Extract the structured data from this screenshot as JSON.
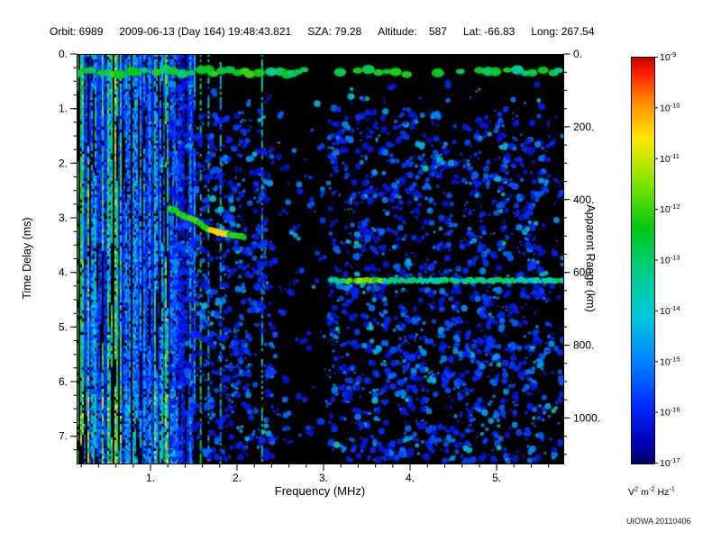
{
  "header": {
    "orbit": "Orbit: 6989",
    "datetime": "2009-06-13 (Day 164) 19:48:43.821",
    "sza": "SZA: 79.28",
    "altitude": "Altitude:    587",
    "lat": "Lat: -66.83",
    "long": "Long: 267.54"
  },
  "credit": "UIOWA 20110406",
  "chart_data": {
    "type": "heatmap",
    "title": "",
    "xlabel": "Frequency (MHz)",
    "ylabel_left": "Time Delay (ms)",
    "ylabel_right": "Apparent Range (km)",
    "xlim_mhz": [
      0.146,
      5.77
    ],
    "ylim_ms": [
      0,
      7.5
    ],
    "x_major_ticks": [
      1,
      2,
      3,
      4,
      5
    ],
    "x_tick_labels": [
      "1.",
      "2.",
      "3.",
      "4.",
      "5."
    ],
    "x_minor_step": 0.2,
    "y_major_ticks_ms": [
      0,
      1,
      2,
      3,
      4,
      5,
      6,
      7
    ],
    "y_tick_labels_left": [
      "0.",
      "1.",
      "2.",
      "3.",
      "4.",
      "5.",
      "6.",
      "7."
    ],
    "y_minor_step_ms": 0.25,
    "right_major_ticks_km": [
      0,
      200,
      400,
      600,
      800,
      1000
    ],
    "right_tick_labels": [
      "0.",
      "200.",
      "400.",
      "600.",
      "800.",
      "1000."
    ],
    "right_minor_step_km": 50,
    "km_per_ms": 150,
    "grid": false,
    "background_color": "#000000",
    "colorbar": {
      "tick_base": "10",
      "tick_exponents": [
        "-9",
        "-10",
        "-11",
        "-12",
        "-13",
        "-14",
        "-15",
        "-16",
        "-17"
      ],
      "unit_parts": [
        {
          "base": "V",
          "exp": "2"
        },
        {
          "base": "m",
          "exp": "-2"
        },
        {
          "base": "Hz",
          "exp": "-1"
        }
      ],
      "stops": [
        {
          "pos": 0,
          "color": "#c80000"
        },
        {
          "pos": 4,
          "color": "#ff1e00"
        },
        {
          "pos": 11,
          "color": "#ff8c00"
        },
        {
          "pos": 20,
          "color": "#ffe600"
        },
        {
          "pos": 30,
          "color": "#8ce600"
        },
        {
          "pos": 42,
          "color": "#00c814"
        },
        {
          "pos": 54,
          "color": "#00cd96"
        },
        {
          "pos": 64,
          "color": "#00c8dc"
        },
        {
          "pos": 75,
          "color": "#0082ff"
        },
        {
          "pos": 86,
          "color": "#0028ff"
        },
        {
          "pos": 95,
          "color": "#0000b4"
        },
        {
          "pos": 100,
          "color": "#000064"
        }
      ]
    },
    "features": {
      "noise_band_fmax_mhz": 1.52,
      "quiet_band_mhz": [
        2.42,
        3.06
      ],
      "top_band_delay_ms": 0.33,
      "extra_streaks_mhz": [
        1.45,
        1.57,
        1.66,
        1.8,
        2.28
      ],
      "ionosphere_trace": [
        [
          1.22,
          2.82
        ],
        [
          1.38,
          2.96
        ],
        [
          1.52,
          3.06
        ],
        [
          1.66,
          3.2
        ],
        [
          1.8,
          3.27
        ],
        [
          1.95,
          3.31
        ],
        [
          2.08,
          3.35
        ]
      ],
      "trace_bright_mhz": [
        1.68,
        1.9
      ],
      "surface_echo": {
        "delay_ms": 4.15,
        "f_start_mhz": 3.08,
        "f_end_mhz": 5.77,
        "bright_mhz": [
          3.25,
          3.7
        ]
      }
    }
  }
}
